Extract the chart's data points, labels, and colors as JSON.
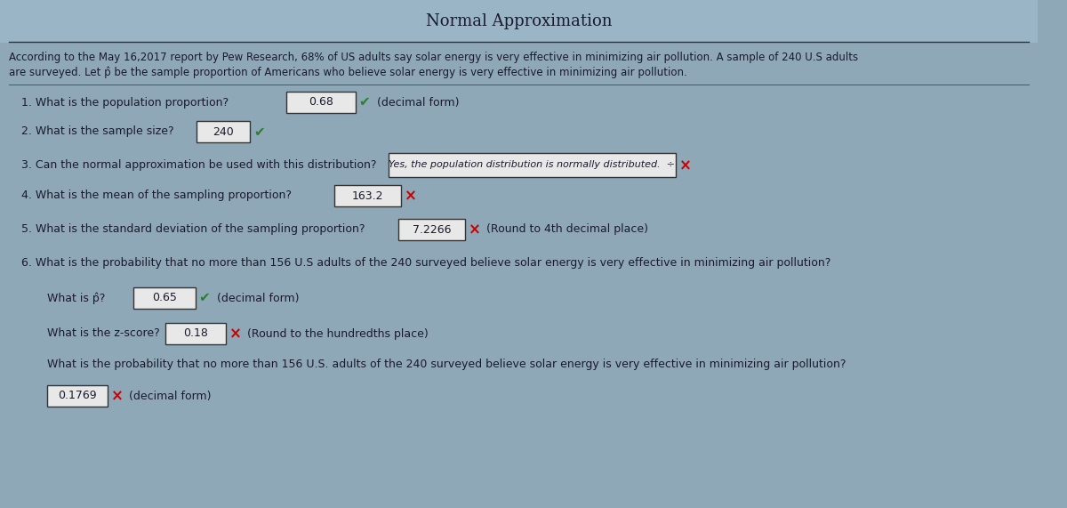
{
  "title": "Normal Approximation",
  "bg_color": "#8fa8b8",
  "intro_text_line1": "According to the May 16,2017 report by Pew Research, 68% of US adults say solar energy is very effective in minimizing air pollution. A sample of 240 U.S adults",
  "intro_text_line2": "are surveyed. Let p̂ be the sample proportion of Americans who believe solar energy is very effective in minimizing air pollution.",
  "q1_text": "1. What is the population proportion?",
  "q1_ans": "0.68",
  "q1_suffix": " (decimal form)",
  "q1_check": "✔",
  "q1_check_color": "#2e7d32",
  "q2_text": "2. What is the sample size?",
  "q2_ans": "240",
  "q2_check": "✔",
  "q2_check_color": "#2e7d32",
  "q3_text": "3. Can the normal approximation be used with this distribution?",
  "q3_ans": "Yes, the population distribution is normally distributed.  ÷",
  "q3_x": "×",
  "q3_x_color": "#cc0000",
  "q4_text": "4. What is the mean of the sampling proportion?",
  "q4_ans": "163.2",
  "q4_x": "×",
  "q4_x_color": "#cc0000",
  "q5_text": "5. What is the standard deviation of the sampling proportion?",
  "q5_ans": "7.2266",
  "q5_x": "×",
  "q5_x_color": "#cc0000",
  "q5_suffix": " (Round to 4th decimal place)",
  "q6_text": "6. What is the probability that no more than 156 U.S adults of the 240 surveyed believe solar energy is very effective in minimizing air pollution?",
  "s1_text": "What is p̂?",
  "s1_ans": "0.65",
  "s1_suffix": " (decimal form)",
  "s1_check": "✔",
  "s1_check_color": "#2e7d32",
  "s2_text": "What is the z-score?",
  "s2_ans": "0.18",
  "s2_x": "×",
  "s2_x_color": "#cc0000",
  "s2_suffix": " (Round to the hundredths place)",
  "s3_text": "What is the probability that no more than 156 U.S. adults of the 240 surveyed believe solar energy is very effective in minimizing air pollution?",
  "s3_ans": "0.1769",
  "s3_x": "×",
  "s3_x_color": "#cc0000",
  "s3_suffix": " (decimal form)",
  "text_color": "#1a1a2e",
  "box_bg": "#e8e8e8",
  "box_border": "#333333"
}
